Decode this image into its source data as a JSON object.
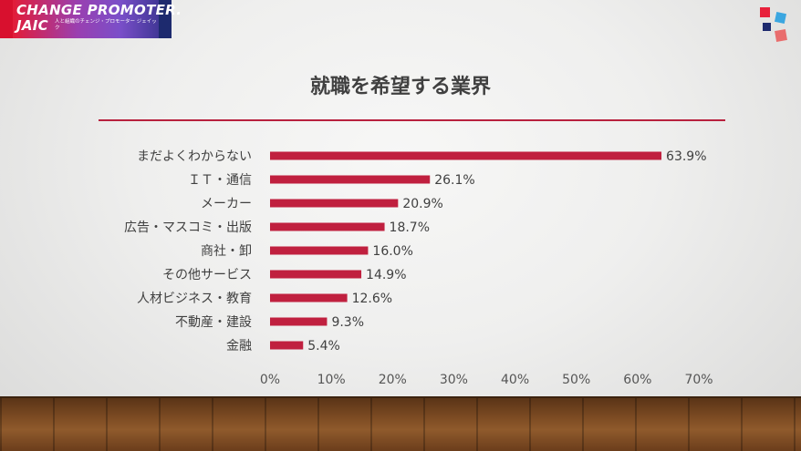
{
  "brand": {
    "wordmark": "CHANGE PROMOTER.\nJAIC",
    "tagline": "人と組織のチェンジ・プロモーター ジェイック"
  },
  "colors": {
    "bar": "#c0203f",
    "title_rule": "#b8213e",
    "logo": [
      "#e8213b",
      "#3ba6e0",
      "#1d2a6e",
      "#e96d6d"
    ]
  },
  "chart_data": {
    "type": "bar",
    "orientation": "horizontal",
    "title": "就職を希望する業界",
    "categories": [
      "まだよくわからない",
      "ＩＴ・通信",
      "メーカー",
      "広告・マスコミ・出版",
      "商社・卸",
      "その他サービス",
      "人材ビジネス・教育",
      "不動産・建設",
      "金融"
    ],
    "values": [
      63.9,
      26.1,
      20.9,
      18.7,
      16.0,
      14.9,
      12.6,
      9.3,
      5.4
    ],
    "value_labels": [
      "63.9%",
      "26.1%",
      "20.9%",
      "18.7%",
      "16.0%",
      "14.9%",
      "12.6%",
      "9.3%",
      "5.4%"
    ],
    "xlim": [
      0,
      70
    ],
    "xticks": [
      "0%",
      "10%",
      "20%",
      "30%",
      "40%",
      "50%",
      "60%",
      "70%"
    ],
    "grid": false,
    "legend": "none"
  }
}
